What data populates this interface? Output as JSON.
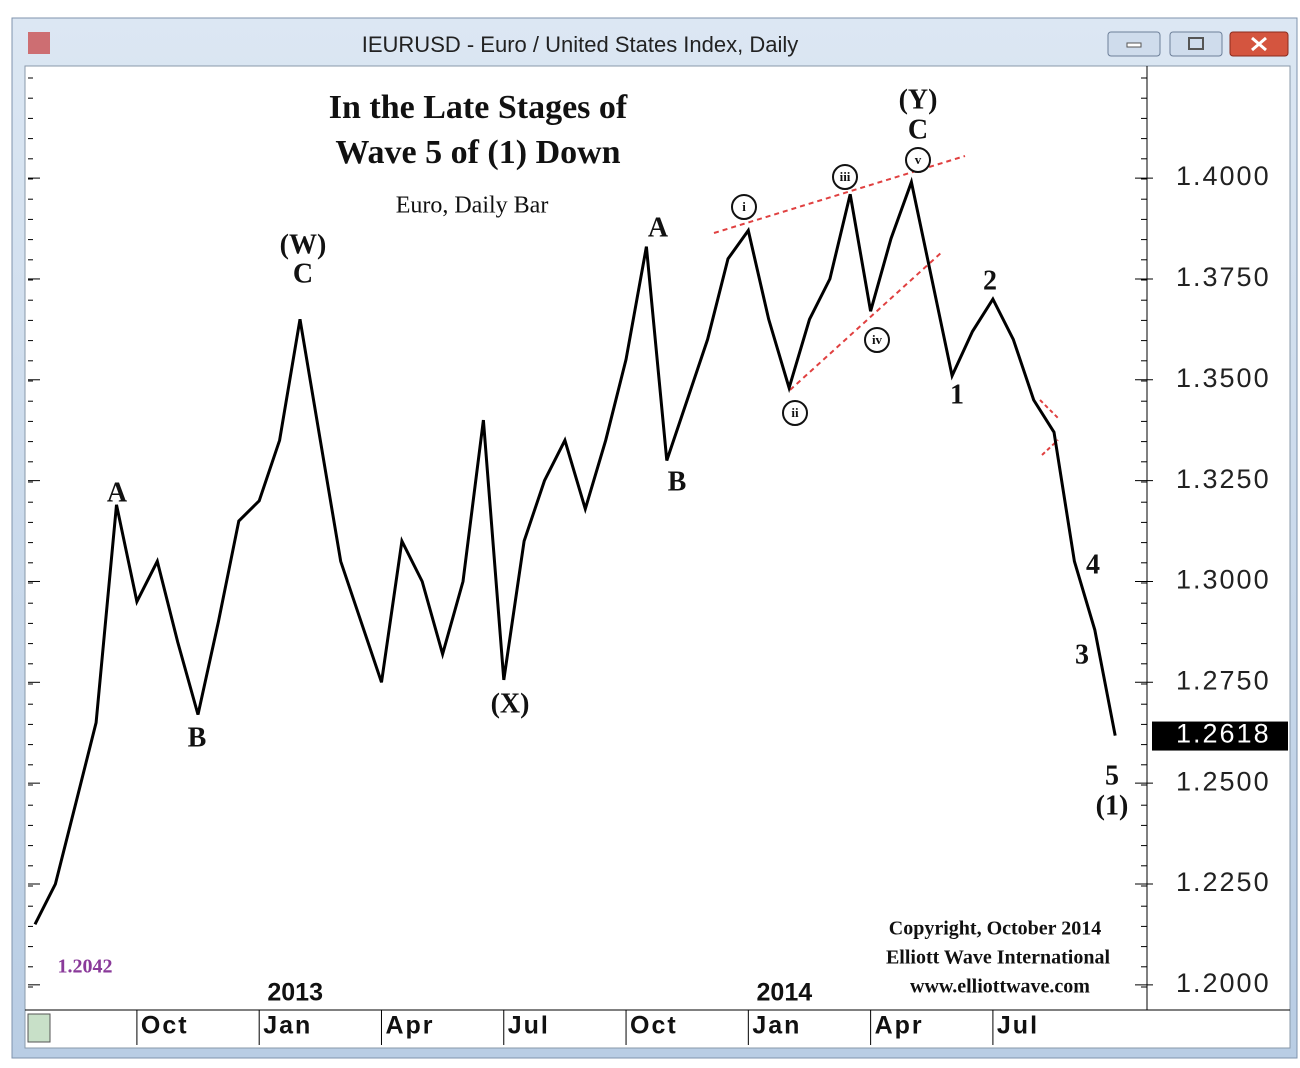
{
  "window_title": "IEURUSD - Euro / United States Index, Daily",
  "chart_data": {
    "type": "line",
    "title": [
      "In the Late Stages of",
      "Wave 5 of (1) Down"
    ],
    "subtitle": "Euro, Daily Bar",
    "categories": [
      null,
      null,
      null,
      null,
      null,
      "Oct",
      null,
      null,
      null,
      null,
      null,
      "Jan",
      null,
      null,
      null,
      null,
      null,
      "Apr",
      null,
      null,
      null,
      null,
      null,
      "Jul",
      null,
      null,
      null,
      null,
      null,
      "Oct",
      null,
      null,
      null,
      null,
      null,
      "Jan",
      null,
      null,
      null,
      null,
      null,
      "Apr",
      null,
      null,
      null,
      null,
      null,
      "Jul",
      null,
      null,
      null,
      null,
      null,
      null
    ],
    "years": [
      "2013",
      "2014"
    ],
    "values": [
      1.215,
      1.225,
      1.245,
      1.265,
      1.319,
      1.295,
      1.305,
      1.285,
      1.267,
      1.29,
      1.315,
      1.32,
      1.335,
      1.365,
      1.335,
      1.305,
      1.29,
      1.275,
      1.31,
      1.3,
      1.282,
      1.3,
      1.34,
      1.2756,
      1.31,
      1.325,
      1.335,
      1.318,
      1.335,
      1.355,
      1.383,
      1.33,
      1.345,
      1.36,
      1.38,
      1.387,
      1.365,
      1.348,
      1.365,
      1.375,
      1.396,
      1.367,
      1.385,
      1.399,
      1.375,
      1.351,
      1.362,
      1.37,
      1.36,
      1.345,
      1.337,
      1.305,
      1.288,
      1.2618
    ],
    "color": "#000000",
    "ylim": [
      1.195,
      1.4268
    ],
    "yticks": [
      {
        "value": 1.2,
        "label": "1.2000"
      },
      {
        "value": 1.225,
        "label": "1.2250"
      },
      {
        "value": 1.25,
        "label": "1.2500"
      },
      {
        "value": 1.275,
        "label": "1.2750"
      },
      {
        "value": 1.3,
        "label": "1.3000"
      },
      {
        "value": 1.325,
        "label": "1.3250"
      },
      {
        "value": 1.35,
        "label": "1.3500"
      },
      {
        "value": 1.375,
        "label": "1.3750"
      },
      {
        "value": 1.4,
        "label": "1.4000"
      }
    ],
    "last_price_label": "1.2618",
    "low_label": "1.2042",
    "wave_labels": [
      "A",
      "B",
      "(W)",
      "C",
      "(X)",
      "A",
      "B",
      "(Y)",
      "C",
      "1",
      "2",
      "3",
      "4",
      "5",
      "(1)"
    ],
    "minor_wave_labels": [
      "i",
      "ii",
      "iii",
      "iv",
      "v"
    ],
    "copyright": [
      "Copyright, October 2014",
      "Elliott Wave International",
      "www.elliottwave.com"
    ]
  }
}
